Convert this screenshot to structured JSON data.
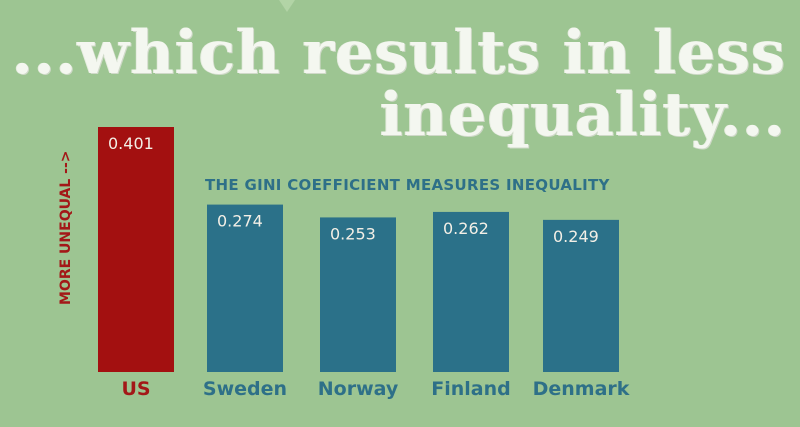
{
  "headline": {
    "line1": "...which results in less",
    "line2": "inequality..."
  },
  "chart_data": {
    "type": "bar",
    "title": "THE GINI COEFFICIENT MEASURES INEQUALITY",
    "ylabel": "MORE UNEQUAL -->",
    "xlabel": "",
    "categories": [
      "US",
      "Sweden",
      "Norway",
      "Finland",
      "Denmark"
    ],
    "values": [
      0.401,
      0.274,
      0.253,
      0.262,
      0.249
    ],
    "value_labels": [
      "0.401",
      "0.274",
      "0.253",
      "0.262",
      "0.249"
    ],
    "colors": [
      "#a31010",
      "#2b7189",
      "#2b7189",
      "#2b7189",
      "#2b7189"
    ],
    "label_colors": [
      "#a31818",
      "#2e7088",
      "#2e7088",
      "#2e7088",
      "#2e7088"
    ],
    "ylim": [
      0,
      0.401
    ],
    "grid": false,
    "legend": "none"
  }
}
